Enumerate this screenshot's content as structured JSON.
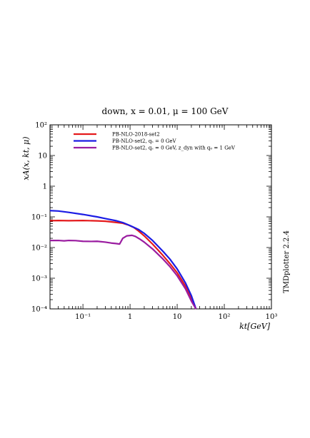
{
  "chart_data": {
    "type": "line",
    "title": "down, x = 0.01, μ = 100 GeV",
    "xlabel": "kt[GeV]",
    "ylabel": "xA(x, kt, μ)",
    "side_label": "TMDplotter 2.2.4",
    "xscale": "log",
    "yscale": "log",
    "xlim": [
      0.02,
      1000
    ],
    "ylim": [
      0.0001,
      100
    ],
    "x_ticks": [
      {
        "value": 0.1,
        "label": "10⁻¹"
      },
      {
        "value": 1,
        "label": "1"
      },
      {
        "value": 10,
        "label": "10"
      },
      {
        "value": 100,
        "label": "10²"
      },
      {
        "value": 1000,
        "label": "10³"
      }
    ],
    "y_ticks": [
      {
        "value": 0.0001,
        "label": "10⁻⁴"
      },
      {
        "value": 0.001,
        "label": "10⁻³"
      },
      {
        "value": 0.01,
        "label": "10⁻²"
      },
      {
        "value": 0.1,
        "label": "10⁻¹"
      },
      {
        "value": 1,
        "label": "1"
      },
      {
        "value": 10,
        "label": "10"
      },
      {
        "value": 100,
        "label": "10²"
      }
    ],
    "legend_position": "top-left",
    "grid": false,
    "series": [
      {
        "name": "PB-NLO-2018-set2",
        "color": "#e41a1c",
        "points": [
          [
            0.02,
            0.075
          ],
          [
            0.03,
            0.076
          ],
          [
            0.05,
            0.075
          ],
          [
            0.1,
            0.076
          ],
          [
            0.2,
            0.074
          ],
          [
            0.3,
            0.072
          ],
          [
            0.5,
            0.066
          ],
          [
            0.7,
            0.062
          ],
          [
            0.9,
            0.055
          ],
          [
            1.2,
            0.045
          ],
          [
            1.5,
            0.035
          ],
          [
            2,
            0.024
          ],
          [
            3,
            0.013
          ],
          [
            5,
            0.0055
          ],
          [
            7,
            0.003
          ],
          [
            10,
            0.0015
          ],
          [
            15,
            0.00055
          ],
          [
            20,
            0.00021
          ],
          [
            25,
            0.0001
          ]
        ]
      },
      {
        "name": "PB-NLO-set2, qs = 0 GeV",
        "color": "#1c1ce4",
        "points": [
          [
            0.02,
            0.16
          ],
          [
            0.03,
            0.155
          ],
          [
            0.05,
            0.14
          ],
          [
            0.1,
            0.12
          ],
          [
            0.2,
            0.1
          ],
          [
            0.3,
            0.088
          ],
          [
            0.5,
            0.075
          ],
          [
            0.7,
            0.065
          ],
          [
            1,
            0.052
          ],
          [
            1.5,
            0.039
          ],
          [
            2,
            0.029
          ],
          [
            3,
            0.017
          ],
          [
            5,
            0.0075
          ],
          [
            7,
            0.0042
          ],
          [
            10,
            0.002
          ],
          [
            15,
            0.0007
          ],
          [
            20,
            0.00027
          ],
          [
            25,
            0.0001
          ]
        ]
      },
      {
        "name": "PB-NLO-set2, qs = 0 GeV, zdyn with q0 = 1 GeV",
        "color": "#9a1ca0",
        "points": [
          [
            0.02,
            0.017
          ],
          [
            0.03,
            0.017
          ],
          [
            0.04,
            0.0165
          ],
          [
            0.05,
            0.017
          ],
          [
            0.07,
            0.0168
          ],
          [
            0.1,
            0.016
          ],
          [
            0.15,
            0.0158
          ],
          [
            0.2,
            0.016
          ],
          [
            0.3,
            0.015
          ],
          [
            0.4,
            0.014
          ],
          [
            0.5,
            0.0135
          ],
          [
            0.6,
            0.013
          ],
          [
            0.7,
            0.02
          ],
          [
            0.85,
            0.024
          ],
          [
            1.1,
            0.025
          ],
          [
            1.3,
            0.023
          ],
          [
            1.6,
            0.019
          ],
          [
            2,
            0.015
          ],
          [
            3,
            0.009
          ],
          [
            5,
            0.0042
          ],
          [
            7,
            0.0024
          ],
          [
            10,
            0.0012
          ],
          [
            15,
            0.00045
          ],
          [
            20,
            0.00018
          ],
          [
            25,
            0.0001
          ]
        ]
      }
    ],
    "legend_labels": [
      "PB-NLO-2018-set2",
      "PB-NLO-set2, qₛ = 0 GeV",
      "PB-NLO-set2, qₛ = 0 GeV, z_dyn with q₀ = 1 GeV"
    ]
  }
}
